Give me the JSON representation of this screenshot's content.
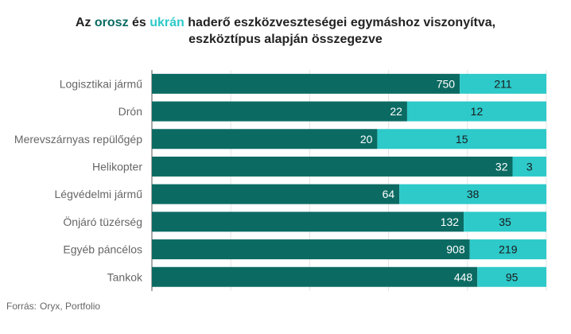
{
  "title": {
    "p1": "Az ",
    "russian": "orosz",
    "p2": " és ",
    "ukrainian": "ukrán",
    "p3": " haderő eszközveszteségei egymáshoz viszonyítva,",
    "line2": "eszköztípus alapján összegezve"
  },
  "source": {
    "label": "Forrás:",
    "text": "Oryx, Portfolio"
  },
  "colors": {
    "russian": "#0b6b63",
    "ukrainian": "#2ec9c9",
    "title_text": "#222222",
    "label_text": "#666666"
  },
  "chart_data": {
    "type": "bar",
    "orientation": "horizontal",
    "stacked": "percent",
    "categories": [
      "Logisztikai jármű",
      "Drón",
      "Merevszárnyas repülőgép",
      "Helikopter",
      "Légvédelmi jármű",
      "Önjáró tüzérség",
      "Egyéb páncélos",
      "Tankok"
    ],
    "series": [
      {
        "name": "orosz",
        "color": "#0b6b63",
        "values": [
          750,
          22,
          20,
          32,
          64,
          132,
          908,
          448
        ]
      },
      {
        "name": "ukrán",
        "color": "#2ec9c9",
        "values": [
          211,
          12,
          15,
          3,
          38,
          35,
          219,
          95
        ]
      }
    ],
    "grid": true
  }
}
